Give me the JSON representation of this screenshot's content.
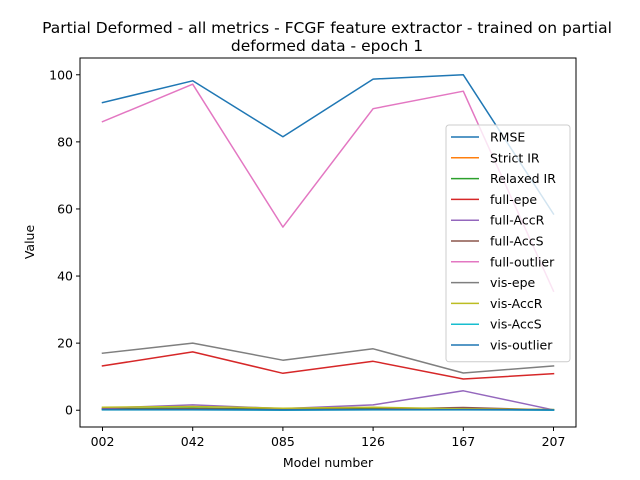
{
  "chart_data": {
    "type": "line",
    "title": [
      "Partial Deformed - all metrics - FCGF feature extractor -  trained on partial",
      "deformed data -  epoch 1"
    ],
    "xlabel": "Model number",
    "ylabel": "Value",
    "categories": [
      "002",
      "042",
      "085",
      "126",
      "167",
      "207"
    ],
    "ylim": [
      -5,
      105
    ],
    "yticks": [
      0,
      20,
      40,
      60,
      80,
      100
    ],
    "legend_position": "right",
    "grid": false,
    "series": [
      {
        "name": "RMSE",
        "color": "#1f77b4",
        "values": [
          91.7,
          98.2,
          81.5,
          98.7,
          100.0,
          58.5
        ]
      },
      {
        "name": "Strict IR",
        "color": "#ff7f0e",
        "values": [
          0.3,
          0.5,
          0.2,
          0.4,
          0.3,
          0.1
        ]
      },
      {
        "name": "Relaxed IR",
        "color": "#2ca02c",
        "values": [
          0.5,
          0.6,
          0.3,
          0.5,
          0.4,
          0.2
        ]
      },
      {
        "name": "full-epe",
        "color": "#d62728",
        "values": [
          13.2,
          17.4,
          11.0,
          14.6,
          9.3,
          10.9
        ]
      },
      {
        "name": "full-AccR",
        "color": "#9467bd",
        "values": [
          0.6,
          1.6,
          0.5,
          1.6,
          5.8,
          0.1
        ]
      },
      {
        "name": "full-AccS",
        "color": "#8c564b",
        "values": [
          0.3,
          0.4,
          0.2,
          0.3,
          0.8,
          0.1
        ]
      },
      {
        "name": "full-outlier",
        "color": "#e377c2",
        "values": [
          86.0,
          97.2,
          54.6,
          89.9,
          95.1,
          35.5
        ]
      },
      {
        "name": "vis-epe",
        "color": "#7f7f7f",
        "values": [
          17.0,
          20.0,
          14.9,
          18.3,
          11.1,
          13.2
        ]
      },
      {
        "name": "vis-AccR",
        "color": "#bcbd22",
        "values": [
          0.9,
          1.1,
          0.6,
          0.9,
          0.4,
          0.2
        ]
      },
      {
        "name": "vis-AccS",
        "color": "#17becf",
        "values": [
          0.1,
          0.1,
          0.0,
          0.1,
          0.1,
          0.0
        ]
      },
      {
        "name": "vis-outlier",
        "color": "#1f77b4",
        "values": [
          0.2,
          0.2,
          0.1,
          0.2,
          0.2,
          0.1
        ]
      }
    ]
  }
}
